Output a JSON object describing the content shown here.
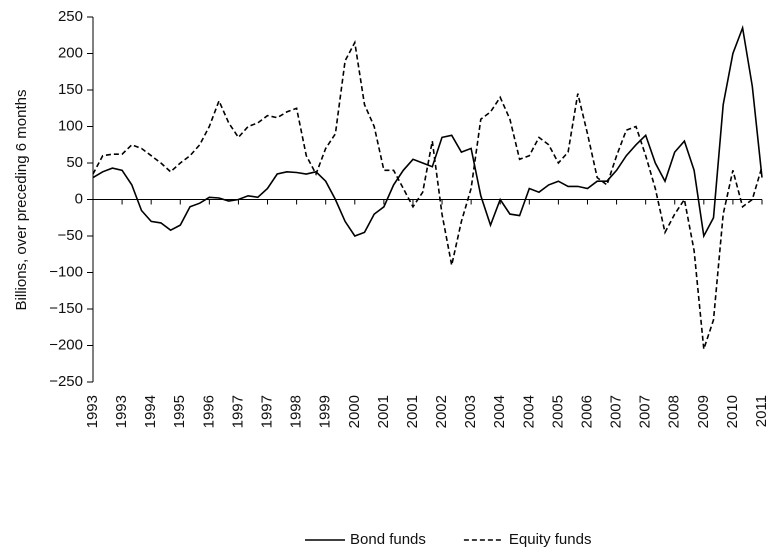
{
  "chart_data": {
    "type": "line",
    "y_label": "Billions, over preceding 6 months",
    "categories": [
      "1993",
      null,
      null,
      "1993",
      null,
      null,
      "1994",
      null,
      null,
      "1995",
      null,
      null,
      "1996",
      null,
      null,
      "1997",
      null,
      null,
      "1997",
      null,
      null,
      "1998",
      null,
      null,
      "1999",
      null,
      null,
      "2000",
      null,
      null,
      "2001",
      null,
      null,
      "2001",
      null,
      null,
      "2002",
      null,
      null,
      "2003",
      null,
      null,
      "2004",
      null,
      null,
      "2004",
      null,
      null,
      "2005",
      null,
      null,
      "2006",
      null,
      null,
      "2007",
      null,
      null,
      "2007",
      null,
      null,
      "2008",
      null,
      null,
      "2009",
      null,
      null,
      "2010",
      null,
      null,
      "2011"
    ],
    "series": [
      {
        "name": "Bond funds",
        "color": "#000000",
        "style": "solid",
        "values": [
          30,
          38,
          43,
          40,
          20,
          -15,
          -30,
          -32,
          -42,
          -35,
          -10,
          -5,
          3,
          2,
          -2,
          0,
          5,
          3,
          15,
          35,
          38,
          37,
          35,
          38,
          25,
          0,
          -30,
          -50,
          -45,
          -20,
          -10,
          20,
          40,
          55,
          50,
          45,
          85,
          88,
          65,
          70,
          5,
          -35,
          0,
          -20,
          -22,
          15,
          10,
          20,
          25,
          18,
          18,
          15,
          25,
          25,
          40,
          60,
          75,
          88,
          50,
          25,
          65,
          80,
          40,
          -50,
          -25,
          130,
          200,
          235,
          155,
          30
        ]
      },
      {
        "name": "Equity funds",
        "color": "#000000",
        "style": "dashed",
        "values": [
          35,
          60,
          62,
          62,
          75,
          70,
          60,
          50,
          38,
          50,
          60,
          75,
          100,
          135,
          105,
          85,
          100,
          105,
          115,
          112,
          120,
          125,
          60,
          35,
          70,
          90,
          190,
          215,
          130,
          100,
          40,
          40,
          15,
          -10,
          10,
          80,
          -20,
          -90,
          -30,
          15,
          110,
          120,
          140,
          110,
          55,
          60,
          85,
          75,
          50,
          65,
          145,
          90,
          30,
          20,
          60,
          95,
          100,
          60,
          15,
          -45,
          -20,
          0,
          -70,
          -205,
          -165,
          -20,
          40,
          -10,
          0,
          45
        ]
      }
    ],
    "ylim": [
      -250,
      250
    ],
    "yticks": [
      {
        "value": -250,
        "label": "−250"
      },
      {
        "value": -200,
        "label": "−200"
      },
      {
        "value": -150,
        "label": "−150"
      },
      {
        "value": -100,
        "label": "−100"
      },
      {
        "value": -50,
        "label": "−50"
      },
      0,
      50,
      100,
      150,
      200,
      250
    ],
    "grid": false,
    "legend": "bottom"
  }
}
